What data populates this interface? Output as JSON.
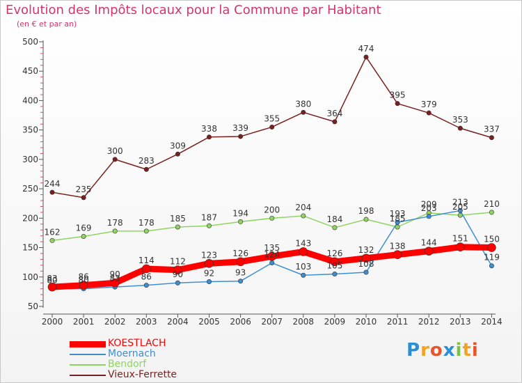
{
  "title": "Evolution des Impôts locaux pour la Commune par Habitant",
  "subtitle": "(en € et par an)",
  "logo": {
    "text": "Proxiti",
    "letters": [
      "P",
      "r",
      "o",
      "x",
      "i",
      "t",
      "i"
    ],
    "colors": [
      "#2b8fd6",
      "#f2a322",
      "#e8542b",
      "#2b8fd6",
      "#7cc242",
      "#f2a322",
      "#e8542b"
    ]
  },
  "chart_data": {
    "type": "line",
    "categories": [
      "2000",
      "2001",
      "2002",
      "2003",
      "2004",
      "2005",
      "2006",
      "2007",
      "2008",
      "2009",
      "2010",
      "2011",
      "2012",
      "2013",
      "2014"
    ],
    "ylim": [
      50,
      500
    ],
    "yticks": [
      50,
      100,
      150,
      200,
      250,
      300,
      350,
      400,
      450,
      500
    ],
    "grid": false,
    "legend_position": "bottom-left",
    "series": [
      {
        "name": "Vieux-Ferrette",
        "color": "#7a1f1f",
        "values": [
          244,
          235,
          300,
          283,
          309,
          338,
          339,
          355,
          380,
          364,
          474,
          395,
          379,
          353,
          337
        ]
      },
      {
        "name": "Bendorf",
        "color": "#8fd461",
        "values": [
          162,
          169,
          178,
          178,
          185,
          187,
          194,
          200,
          204,
          184,
          198,
          185,
          209,
          205,
          210
        ]
      },
      {
        "name": "Moernach",
        "color": "#3d8fd1",
        "values": [
          80,
          80,
          83,
          86,
          90,
          92,
          93,
          124,
          103,
          105,
          108,
          193,
          203,
          213,
          119
        ]
      },
      {
        "name": "KOESTLACH",
        "color": "#ff0000",
        "values": [
          83,
          86,
          90,
          114,
          112,
          123,
          126,
          135,
          143,
          126,
          132,
          138,
          144,
          151,
          150
        ]
      }
    ],
    "legend_order": [
      "KOESTLACH",
      "Moernach",
      "Bendorf",
      "Vieux-Ferrette"
    ]
  }
}
